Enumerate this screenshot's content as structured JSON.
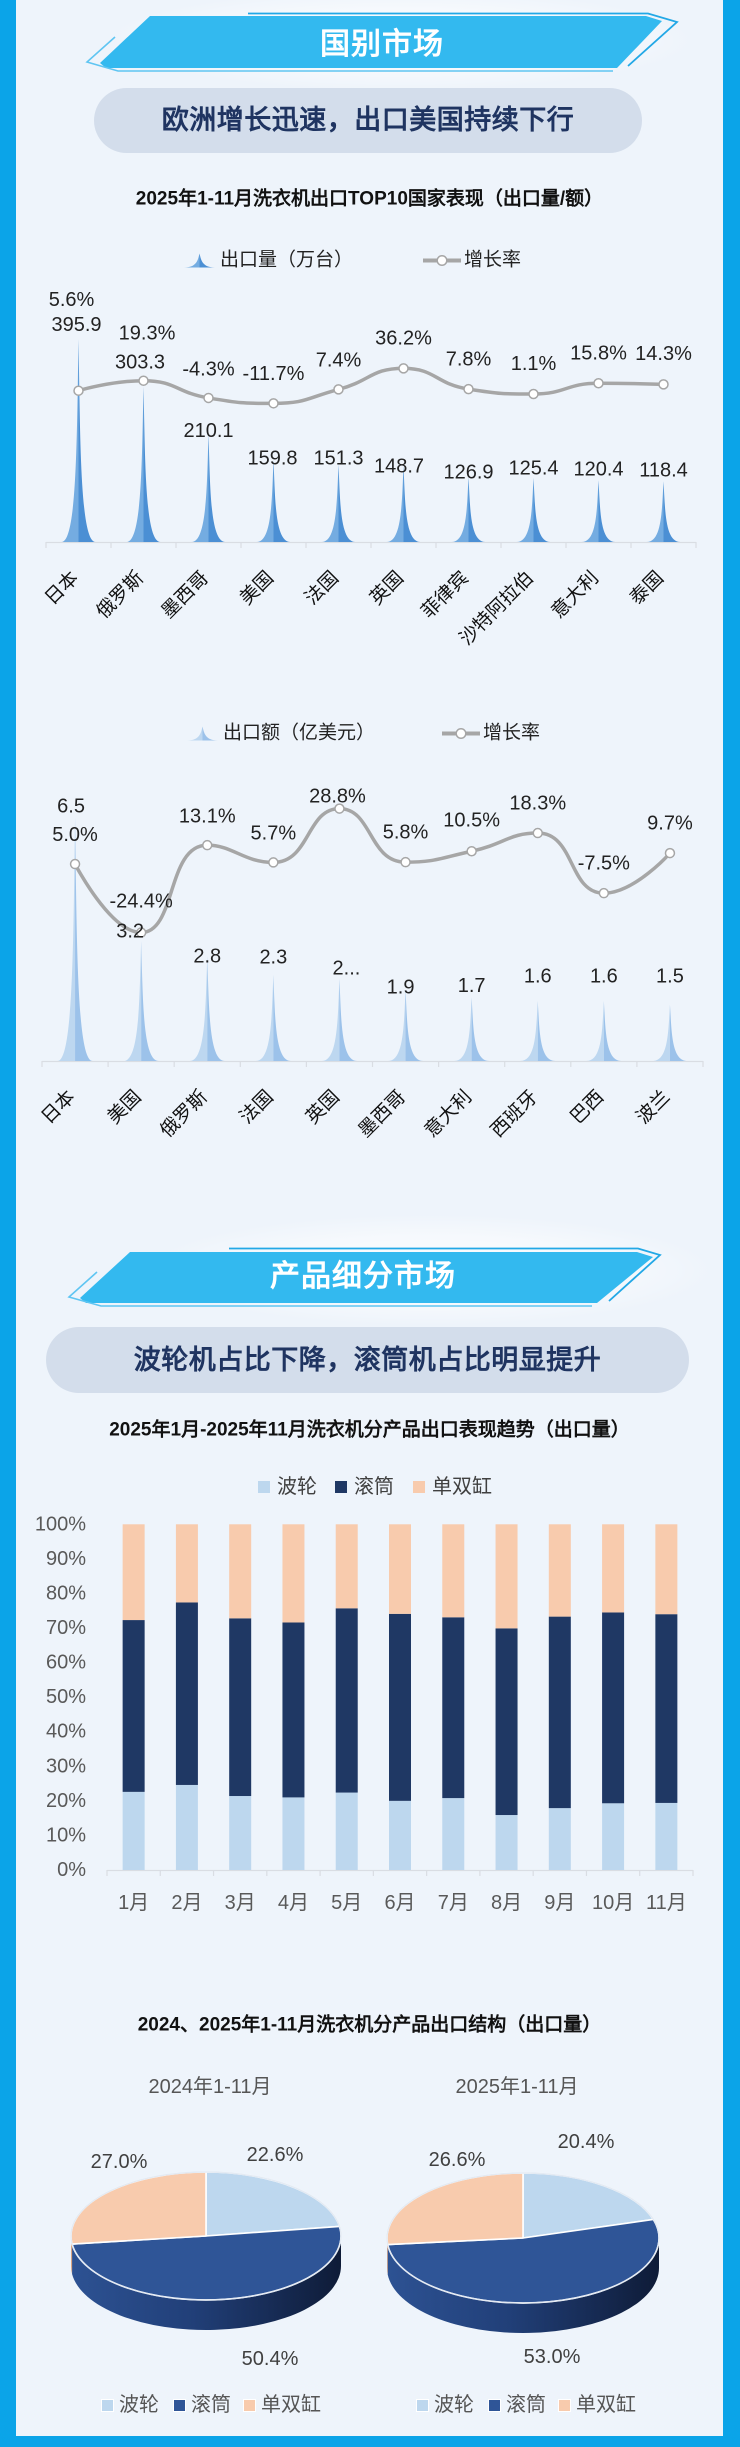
{
  "colors": {
    "frame": "#0ba4e8",
    "banner_fill": "#33b9ef",
    "pill_bg": "#d3ddeb",
    "headline_text": "#1f3461",
    "pulsator": "#bdd7ee",
    "drum_bar": "#1f3864",
    "drum_pie": "#2f5597",
    "twin_tub": "#f8cbad"
  },
  "section_country": {
    "banner_title": "国别市场",
    "headline": "欧洲增长迅速，出口美国持续下行"
  },
  "section_product": {
    "banner_title": "产品细分市场",
    "headline": "波轮机占比下降，滚筒机占比明显提升"
  },
  "chart_data": [
    {
      "id": "top10-export-volume",
      "type": "bar+line",
      "title": "2025年1-11月洗衣机出口TOP10国家表现（出口量/额）",
      "categories": [
        "日本",
        "俄罗斯",
        "墨西哥",
        "美国",
        "法国",
        "英国",
        "菲律宾",
        "沙特阿拉伯",
        "意大利",
        "泰国"
      ],
      "series": [
        {
          "name": "出口量（万台）",
          "type": "bar",
          "style": "spike",
          "color_light": "#74ace1",
          "color_dark": "#4b8fd4",
          "values": [
            395.9,
            303.3,
            210.1,
            159.8,
            151.3,
            148.7,
            126.9,
            125.4,
            120.4,
            118.4
          ],
          "labels": [
            "395.9",
            "303.3",
            "210.1",
            "159.8",
            "151.3",
            "148.7",
            "126.9",
            "125.4",
            "120.4",
            "118.4"
          ]
        },
        {
          "name": "增长率",
          "type": "line",
          "smooth": true,
          "unit": "%",
          "color": "#a6a6a6",
          "values": [
            5.6,
            19.3,
            -4.3,
            -11.7,
            7.4,
            36.2,
            7.8,
            1.1,
            15.8,
            14.3
          ],
          "labels": [
            "5.6%",
            "19.3%",
            "-4.3%",
            "-11.7%",
            "7.4%",
            "36.2%",
            "7.8%",
            "1.1%",
            "15.8%",
            "14.3%"
          ]
        }
      ],
      "xlabel": "",
      "ylabel": "",
      "grid": false,
      "legend_position": "top",
      "x_label_rotation": 45
    },
    {
      "id": "top10-export-value",
      "type": "bar+line",
      "title": "2025年1-11月洗衣机出口TOP10国家表现（出口量/额）",
      "categories": [
        "日本",
        "美国",
        "俄罗斯",
        "法国",
        "英国",
        "墨西哥",
        "意大利",
        "西班牙",
        "巴西",
        "波兰"
      ],
      "series": [
        {
          "name": "出口额（亿美元）",
          "type": "bar",
          "style": "spike",
          "color_light": "#bdd7f0",
          "color_dark": "#9cc2ea",
          "values": [
            6.5,
            3.2,
            2.8,
            2.3,
            2.2,
            1.9,
            1.7,
            1.6,
            1.6,
            1.5
          ],
          "labels": [
            "6.5",
            "3.2",
            "2.8",
            "2.3",
            "2...",
            "1.9",
            "1.7",
            "1.6",
            "1.6",
            "1.5"
          ]
        },
        {
          "name": "增长率",
          "type": "line",
          "smooth": true,
          "unit": "%",
          "color": "#a6a6a6",
          "values": [
            5.0,
            -24.4,
            13.1,
            5.7,
            28.8,
            5.8,
            10.5,
            18.3,
            -7.5,
            9.7
          ],
          "labels": [
            "5.0%",
            "-24.4%",
            "13.1%",
            "5.7%",
            "28.8%",
            "5.8%",
            "10.5%",
            "18.3%",
            "-7.5%",
            "9.7%"
          ]
        }
      ],
      "xlabel": "",
      "ylabel": "",
      "grid": false,
      "legend_position": "top",
      "x_label_rotation": 45
    },
    {
      "id": "product-trend",
      "type": "bar",
      "stacked": true,
      "percent": true,
      "title": "2025年1月-2025年11月洗衣机分产品出口表现趋势（出口量）",
      "categories": [
        "1月",
        "2月",
        "3月",
        "4月",
        "5月",
        "6月",
        "7月",
        "8月",
        "9月",
        "10月",
        "11月"
      ],
      "series": [
        {
          "name": "波轮",
          "color": "#bdd7ee",
          "values": [
            22.6,
            24.6,
            21.4,
            21.0,
            22.4,
            20.0,
            20.8,
            15.9,
            17.9,
            19.3,
            19.4
          ]
        },
        {
          "name": "滚筒",
          "color": "#1f3864",
          "values": [
            49.7,
            52.8,
            51.4,
            50.6,
            53.3,
            54.1,
            52.3,
            54.0,
            55.4,
            55.2,
            54.6
          ]
        },
        {
          "name": "单双缸",
          "color": "#f8cbad",
          "values": [
            27.7,
            22.6,
            27.2,
            28.4,
            24.3,
            25.9,
            26.9,
            30.1,
            26.7,
            25.5,
            26.0
          ]
        }
      ],
      "y_ticks": [
        "0%",
        "10%",
        "20%",
        "30%",
        "40%",
        "50%",
        "60%",
        "70%",
        "80%",
        "90%",
        "100%"
      ],
      "ylim": [
        0,
        100
      ],
      "xlabel": "",
      "ylabel": "",
      "grid": false,
      "legend_position": "top"
    },
    {
      "id": "product-structure",
      "type": "pie",
      "style": "3d",
      "title": "2024、2025年1-11月洗衣机分产品出口结构（出口量）",
      "categories": [
        "波轮",
        "滚筒",
        "单双缸"
      ],
      "colors": [
        "#bdd7ee",
        "#2f5597",
        "#f8cbad"
      ],
      "pies": [
        {
          "name": "2024年1-11月",
          "values": [
            22.6,
            50.4,
            27.0
          ],
          "labels": [
            "22.6%",
            "50.4%",
            "27.0%"
          ]
        },
        {
          "name": "2025年1-11月",
          "values": [
            20.4,
            53.0,
            26.6
          ],
          "labels": [
            "20.4%",
            "53.0%",
            "26.6%"
          ]
        }
      ],
      "legend_position": "bottom"
    }
  ]
}
